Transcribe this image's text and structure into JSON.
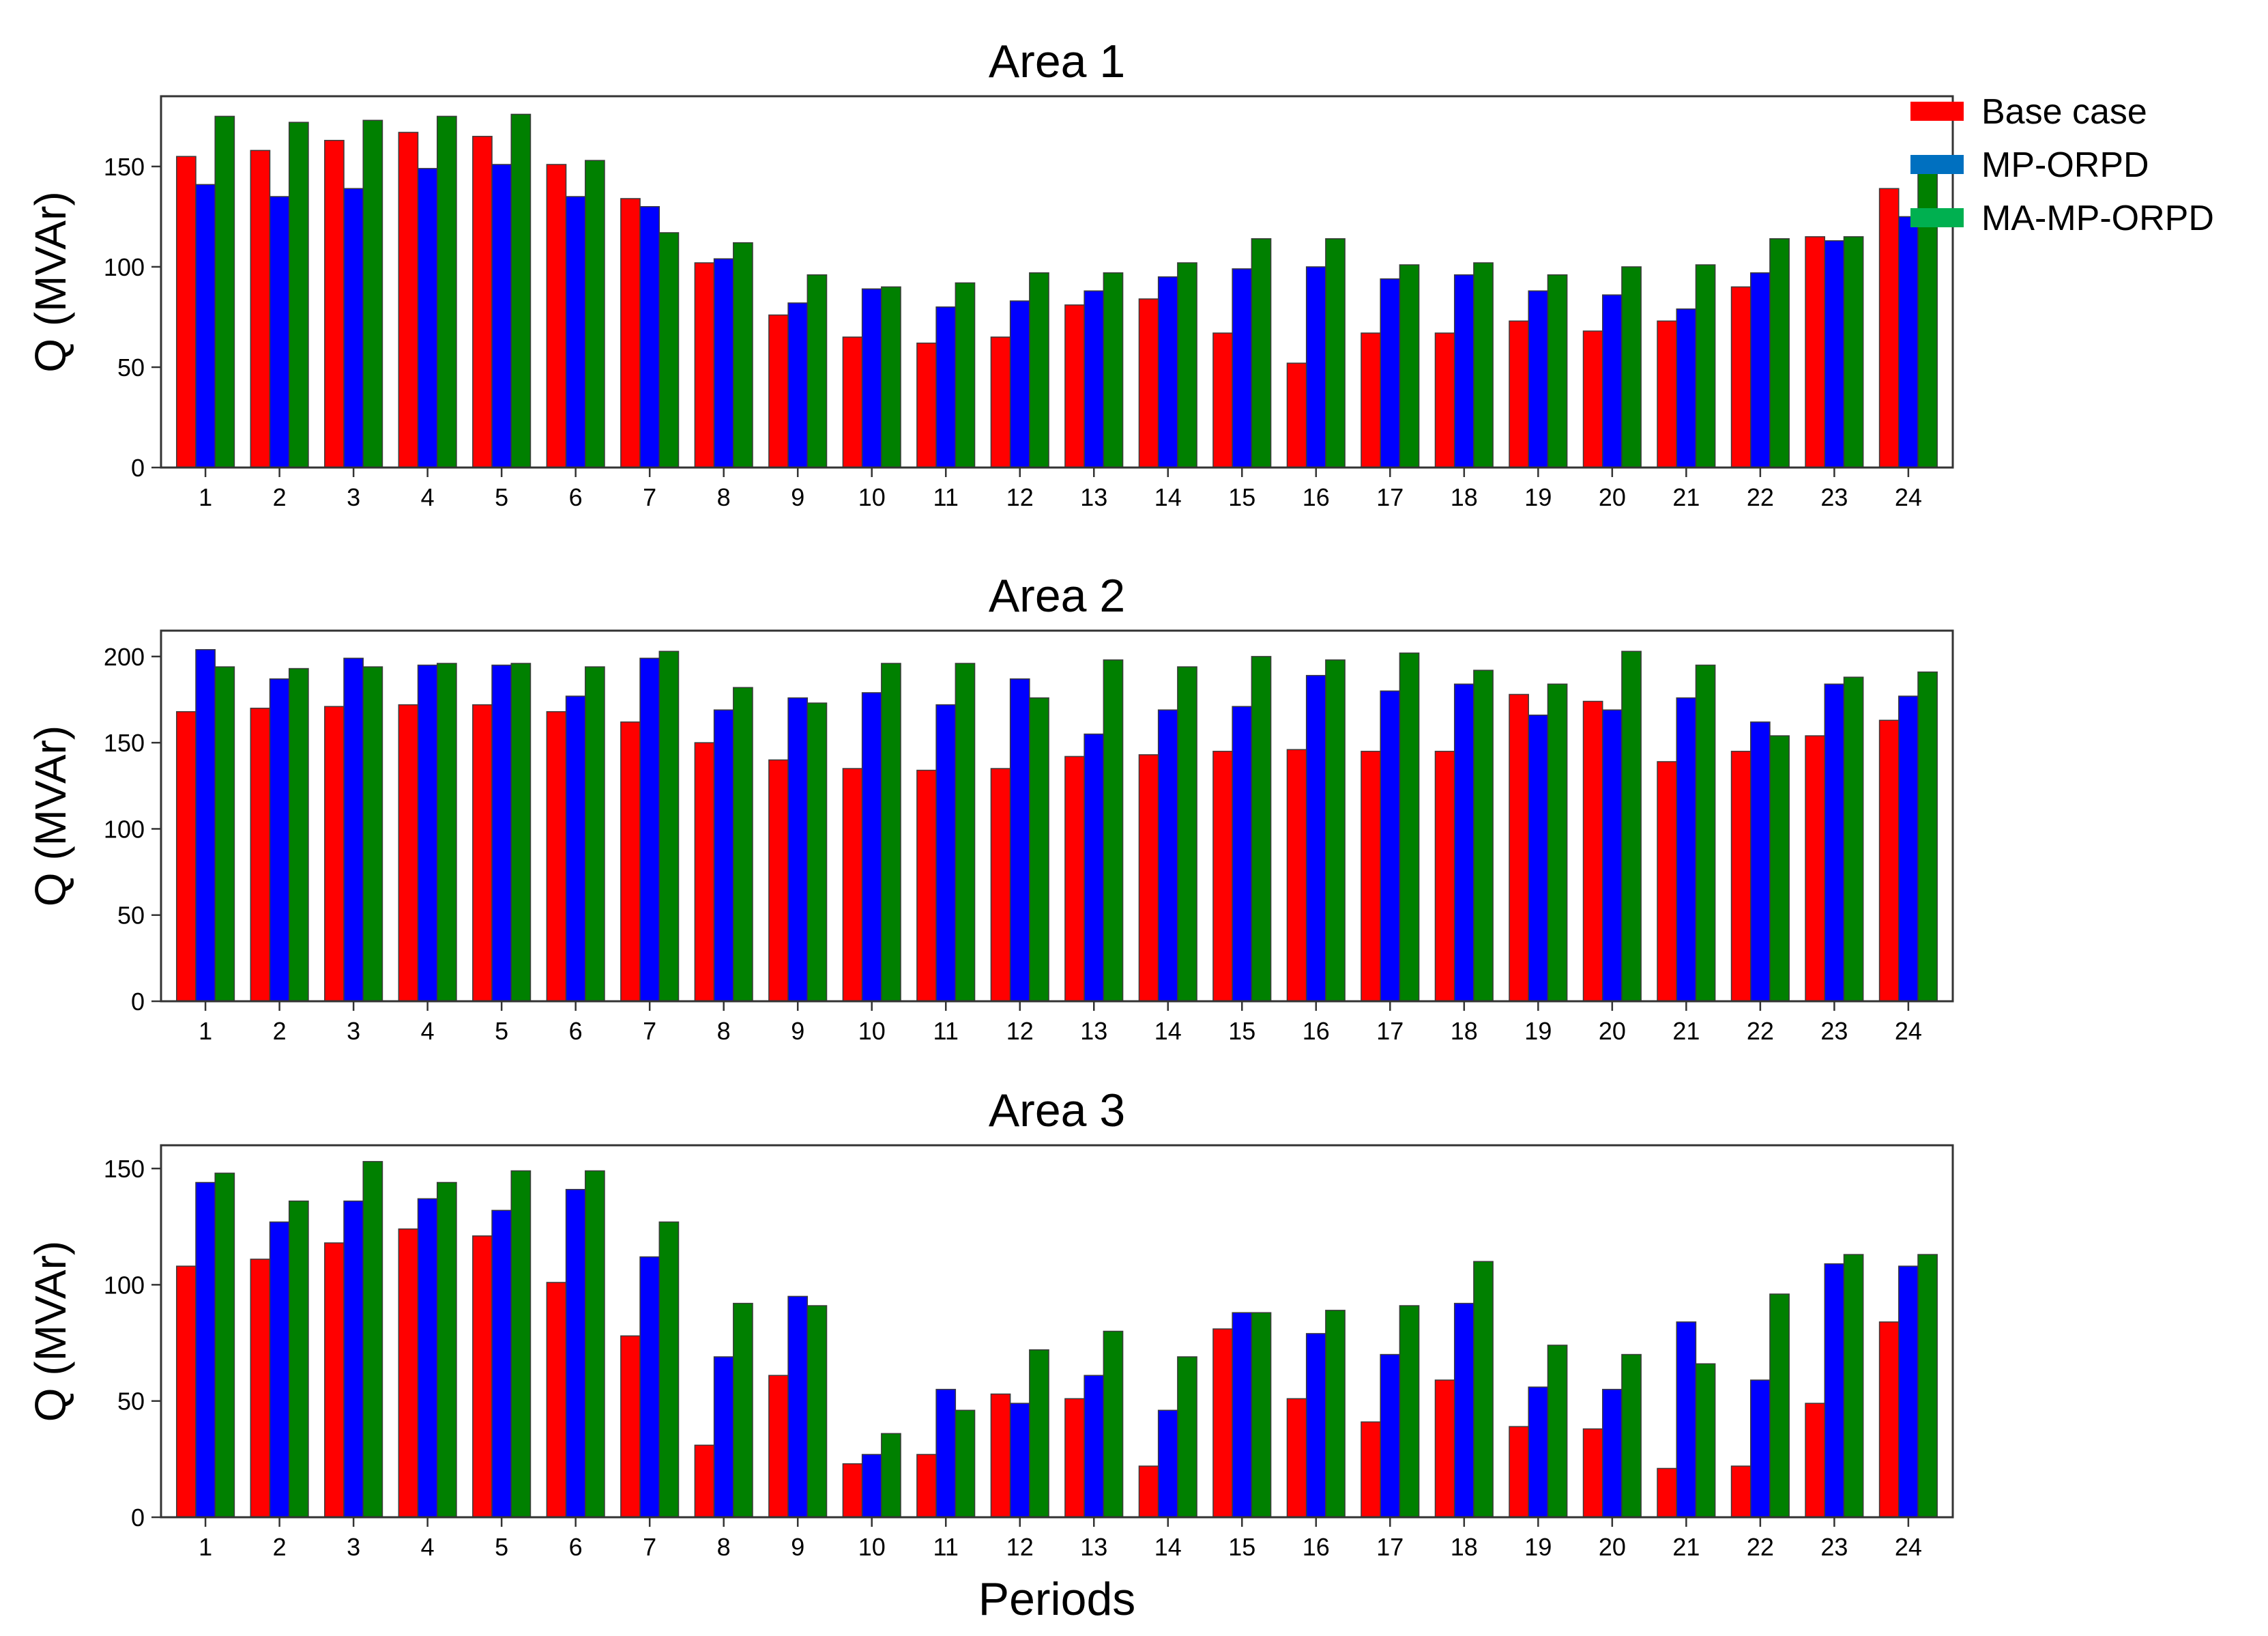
{
  "chart_data": [
    {
      "type": "bar",
      "title": "Area 1",
      "xlabel": "",
      "ylabel": "Q (MVAr)",
      "ylim": [
        0,
        185
      ],
      "yticks": [
        0,
        50,
        100,
        150
      ],
      "categories": [
        "1",
        "2",
        "3",
        "4",
        "5",
        "6",
        "7",
        "8",
        "9",
        "10",
        "11",
        "12",
        "13",
        "14",
        "15",
        "16",
        "17",
        "18",
        "19",
        "20",
        "21",
        "22",
        "23",
        "24"
      ],
      "series": [
        {
          "name": "Base case",
          "color": "#ff0000",
          "values": [
            155,
            158,
            163,
            167,
            165,
            151,
            134,
            102,
            76,
            65,
            62,
            65,
            81,
            84,
            67,
            52,
            67,
            67,
            73,
            68,
            73,
            90,
            115,
            139
          ]
        },
        {
          "name": "MP-ORPD",
          "color": "#0000ff",
          "values": [
            141,
            135,
            139,
            149,
            151,
            135,
            130,
            104,
            82,
            89,
            80,
            83,
            88,
            95,
            99,
            100,
            94,
            96,
            88,
            86,
            79,
            97,
            113,
            125
          ]
        },
        {
          "name": "MA-MP-ORPD",
          "color": "#008000",
          "values": [
            175,
            172,
            173,
            175,
            176,
            153,
            117,
            112,
            96,
            90,
            92,
            97,
            97,
            102,
            114,
            114,
            101,
            102,
            96,
            100,
            101,
            114,
            115,
            152
          ]
        }
      ]
    },
    {
      "type": "bar",
      "title": "Area 2",
      "xlabel": "",
      "ylabel": "Q (MVAr)",
      "ylim": [
        0,
        215
      ],
      "yticks": [
        0,
        50,
        100,
        150,
        200
      ],
      "categories": [
        "1",
        "2",
        "3",
        "4",
        "5",
        "6",
        "7",
        "8",
        "9",
        "10",
        "11",
        "12",
        "13",
        "14",
        "15",
        "16",
        "17",
        "18",
        "19",
        "20",
        "21",
        "22",
        "23",
        "24"
      ],
      "series": [
        {
          "name": "Base case",
          "color": "#ff0000",
          "values": [
            168,
            170,
            171,
            172,
            172,
            168,
            162,
            150,
            140,
            135,
            134,
            135,
            142,
            143,
            145,
            146,
            145,
            145,
            178,
            174,
            139,
            145,
            154,
            163
          ]
        },
        {
          "name": "MP-ORPD",
          "color": "#0000ff",
          "values": [
            204,
            187,
            199,
            195,
            195,
            177,
            199,
            169,
            176,
            179,
            172,
            187,
            155,
            169,
            171,
            189,
            180,
            184,
            166,
            169,
            176,
            162,
            184,
            177
          ]
        },
        {
          "name": "MA-MP-ORPD",
          "color": "#008000",
          "values": [
            194,
            193,
            194,
            196,
            196,
            194,
            203,
            182,
            173,
            196,
            196,
            176,
            198,
            194,
            200,
            198,
            202,
            192,
            184,
            203,
            195,
            154,
            188,
            191
          ]
        }
      ]
    },
    {
      "type": "bar",
      "title": "Area 3",
      "xlabel": "Periods",
      "ylabel": "Q (MVAr)",
      "ylim": [
        0,
        160
      ],
      "yticks": [
        0,
        50,
        100,
        150
      ],
      "categories": [
        "1",
        "2",
        "3",
        "4",
        "5",
        "6",
        "7",
        "8",
        "9",
        "10",
        "11",
        "12",
        "13",
        "14",
        "15",
        "16",
        "17",
        "18",
        "19",
        "20",
        "21",
        "22",
        "23",
        "24"
      ],
      "series": [
        {
          "name": "Base case",
          "color": "#ff0000",
          "values": [
            108,
            111,
            118,
            124,
            121,
            101,
            78,
            31,
            61,
            23,
            27,
            53,
            51,
            22,
            81,
            51,
            41,
            59,
            39,
            38,
            21,
            22,
            49,
            84
          ]
        },
        {
          "name": "MP-ORPD",
          "color": "#0000ff",
          "values": [
            144,
            127,
            136,
            137,
            132,
            141,
            112,
            69,
            95,
            27,
            55,
            49,
            61,
            46,
            88,
            79,
            70,
            92,
            56,
            55,
            84,
            59,
            109,
            108
          ]
        },
        {
          "name": "MA-MP-ORPD",
          "color": "#008000",
          "values": [
            148,
            136,
            153,
            144,
            149,
            149,
            127,
            92,
            91,
            36,
            46,
            72,
            80,
            69,
            88,
            89,
            91,
            110,
            74,
            70,
            66,
            96,
            113,
            113
          ]
        }
      ]
    }
  ],
  "legend": [
    {
      "label": "Base case",
      "color": "#ff0000"
    },
    {
      "label": "MP-ORPD",
      "color": "#0070c0"
    },
    {
      "label": "MA-MP-ORPD",
      "color": "#00b050"
    }
  ]
}
